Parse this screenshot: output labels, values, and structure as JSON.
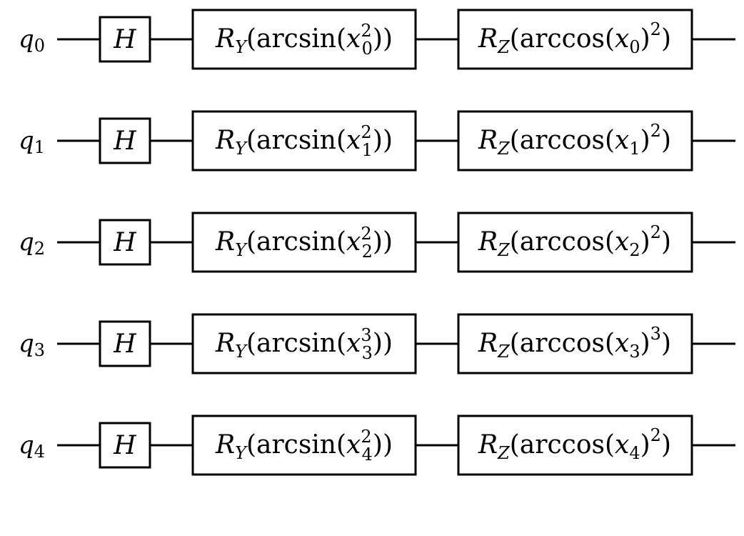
{
  "circuit": {
    "qubits": [
      {
        "label": "q",
        "index": "0",
        "h_gate": "H",
        "ry": {
          "name": "R",
          "axis": "Y",
          "func": "arcsin",
          "var": "x",
          "sub": "0",
          "exp": "2"
        },
        "rz": {
          "name": "R",
          "axis": "Z",
          "func": "arccos",
          "var": "x",
          "sub": "0",
          "exp": "2"
        }
      },
      {
        "label": "q",
        "index": "1",
        "h_gate": "H",
        "ry": {
          "name": "R",
          "axis": "Y",
          "func": "arcsin",
          "var": "x",
          "sub": "1",
          "exp": "2"
        },
        "rz": {
          "name": "R",
          "axis": "Z",
          "func": "arccos",
          "var": "x",
          "sub": "1",
          "exp": "2"
        }
      },
      {
        "label": "q",
        "index": "2",
        "h_gate": "H",
        "ry": {
          "name": "R",
          "axis": "Y",
          "func": "arcsin",
          "var": "x",
          "sub": "2",
          "exp": "2"
        },
        "rz": {
          "name": "R",
          "axis": "Z",
          "func": "arccos",
          "var": "x",
          "sub": "2",
          "exp": "2"
        }
      },
      {
        "label": "q",
        "index": "3",
        "h_gate": "H",
        "ry": {
          "name": "R",
          "axis": "Y",
          "func": "arcsin",
          "var": "x",
          "sub": "3",
          "exp": "3"
        },
        "rz": {
          "name": "R",
          "axis": "Z",
          "func": "arccos",
          "var": "x",
          "sub": "3",
          "exp": "3"
        }
      },
      {
        "label": "q",
        "index": "4",
        "h_gate": "H",
        "ry": {
          "name": "R",
          "axis": "Y",
          "func": "arcsin",
          "var": "x",
          "sub": "4",
          "exp": "2"
        },
        "rz": {
          "name": "R",
          "axis": "Z",
          "func": "arccos",
          "var": "x",
          "sub": "4",
          "exp": "2"
        }
      }
    ]
  }
}
